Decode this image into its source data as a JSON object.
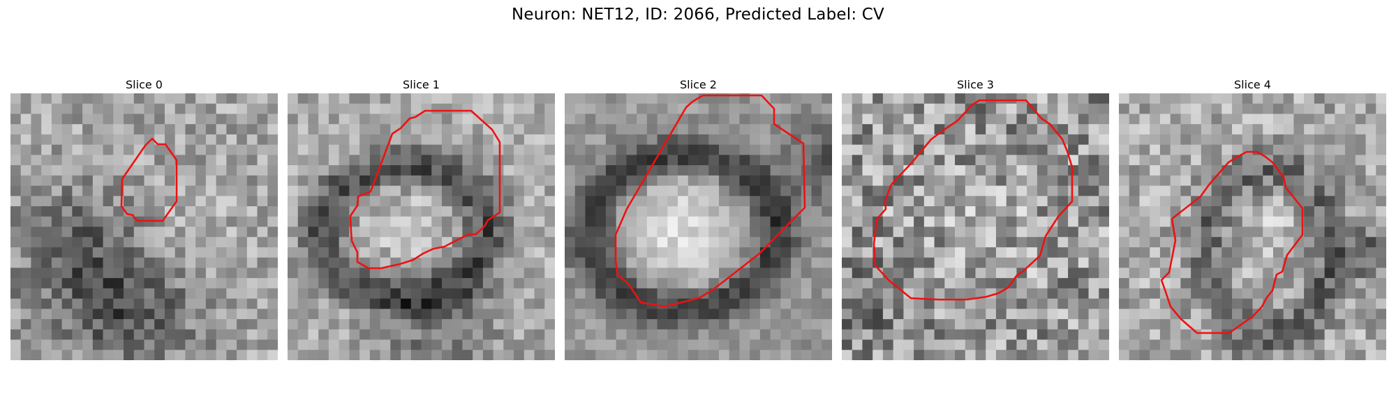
{
  "figure": {
    "suptitle": "Neuron: NET12, ID: 2066, Predicted Label: CV",
    "outline_color": "#ee1111"
  },
  "panels": [
    {
      "title": "Slice 0"
    },
    {
      "title": "Slice 1"
    },
    {
      "title": "Slice 2"
    },
    {
      "title": "Slice 3"
    },
    {
      "title": "Slice 4"
    }
  ]
}
